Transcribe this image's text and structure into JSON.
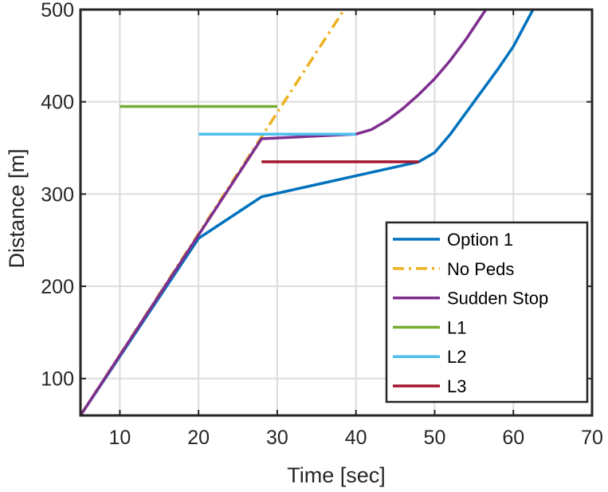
{
  "chart_data": {
    "type": "line",
    "title": "",
    "xlabel": "Time [sec]",
    "ylabel": "Distance [m]",
    "xlim": [
      5,
      70
    ],
    "ylim": [
      60,
      500
    ],
    "xticks": [
      10,
      20,
      30,
      40,
      50,
      60,
      70
    ],
    "yticks": [
      100,
      200,
      300,
      400,
      500
    ],
    "grid": true,
    "legend_position": "bottom-right",
    "series": [
      {
        "name": "Option 1",
        "color": "#0072BD",
        "style": "solid",
        "points": [
          [
            5,
            60
          ],
          [
            20,
            252
          ],
          [
            28,
            297
          ],
          [
            48,
            335
          ],
          [
            50,
            345
          ],
          [
            52,
            365
          ],
          [
            55,
            400
          ],
          [
            58,
            435
          ],
          [
            60,
            460
          ],
          [
            62.5,
            500
          ]
        ]
      },
      {
        "name": "No Peds",
        "color": "#EDB120",
        "style": "dashdot",
        "points": [
          [
            5,
            60
          ],
          [
            38.5,
            500
          ]
        ]
      },
      {
        "name": "Sudden Stop",
        "color": "#7E2F8E",
        "style": "solid",
        "points": [
          [
            5,
            60
          ],
          [
            28,
            360
          ],
          [
            40,
            365
          ],
          [
            42,
            370
          ],
          [
            44,
            380
          ],
          [
            46,
            393
          ],
          [
            48,
            408
          ],
          [
            50,
            425
          ],
          [
            52,
            445
          ],
          [
            54,
            468
          ],
          [
            56.5,
            500
          ]
        ]
      },
      {
        "name": "L1",
        "color": "#77AC30",
        "style": "solid",
        "points": [
          [
            10,
            395
          ],
          [
            30,
            395
          ]
        ]
      },
      {
        "name": "L2",
        "color": "#4DBEEE",
        "style": "solid",
        "points": [
          [
            20,
            365
          ],
          [
            40,
            365
          ]
        ]
      },
      {
        "name": "L3",
        "color": "#A2142F",
        "style": "solid",
        "points": [
          [
            28,
            335
          ],
          [
            48,
            335
          ]
        ]
      }
    ]
  }
}
